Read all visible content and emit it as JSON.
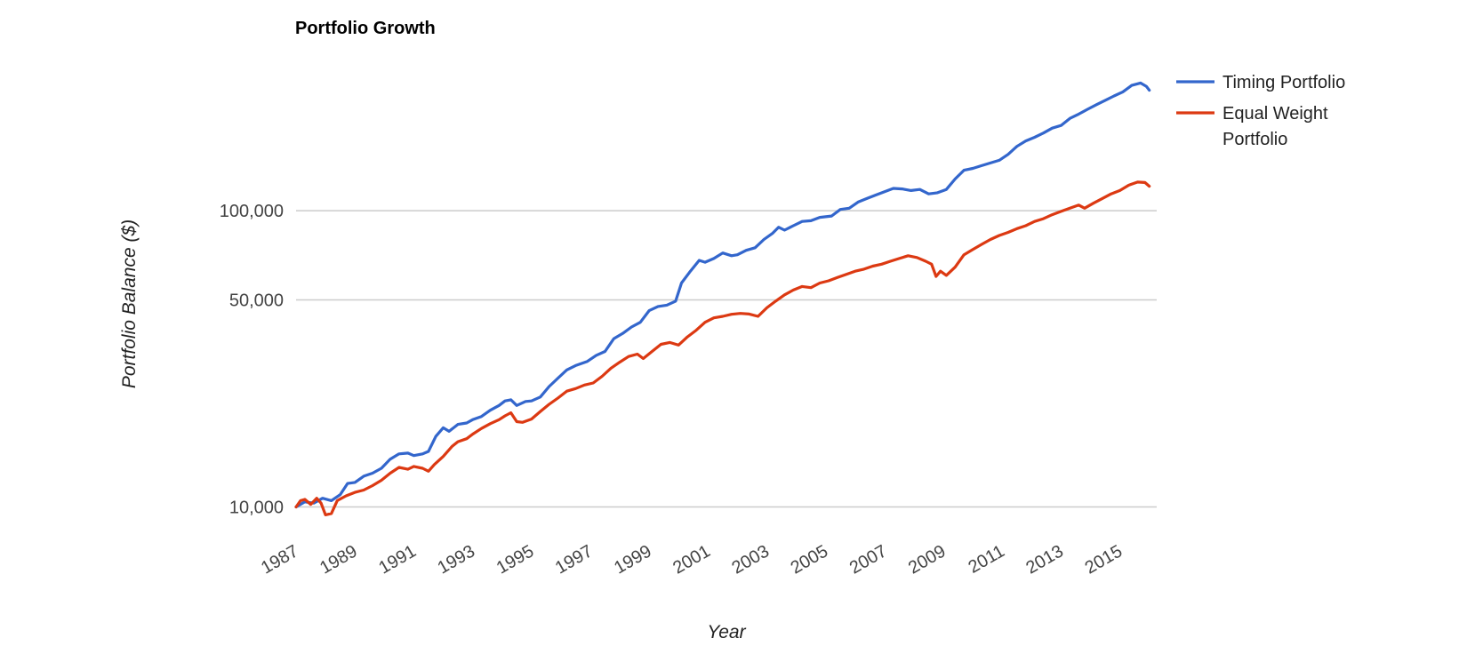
{
  "chart_data": {
    "type": "line",
    "title": "Portfolio Growth",
    "xlabel": "Year",
    "ylabel": "Portfolio Balance ($)",
    "y_scale": "log",
    "ylim": [
      8500,
      340000
    ],
    "xlim": [
      1987.0,
      2016.25
    ],
    "y_ticks": [
      {
        "value": 10000,
        "label": "10,000"
      },
      {
        "value": 50000,
        "label": "50,000"
      },
      {
        "value": 100000,
        "label": "100,000"
      }
    ],
    "x_ticks": [
      "1987",
      "1989",
      "1991",
      "1993",
      "1995",
      "1997",
      "1999",
      "2001",
      "2003",
      "2005",
      "2007",
      "2009",
      "2011",
      "2013",
      "2015"
    ],
    "grid": true,
    "legend_position": "right",
    "series": [
      {
        "name": "Timing Portfolio",
        "color": "#3366cc",
        "points": [
          [
            1987.0,
            10000
          ],
          [
            1987.3,
            10400
          ],
          [
            1987.6,
            10300
          ],
          [
            1987.9,
            10700
          ],
          [
            1988.2,
            10500
          ],
          [
            1988.5,
            11000
          ],
          [
            1988.75,
            12000
          ],
          [
            1989.0,
            12100
          ],
          [
            1989.3,
            12700
          ],
          [
            1989.6,
            13000
          ],
          [
            1989.9,
            13500
          ],
          [
            1990.2,
            14500
          ],
          [
            1990.5,
            15100
          ],
          [
            1990.8,
            15200
          ],
          [
            1991.0,
            14900
          ],
          [
            1991.3,
            15100
          ],
          [
            1991.5,
            15400
          ],
          [
            1991.75,
            17300
          ],
          [
            1992.0,
            18500
          ],
          [
            1992.2,
            18000
          ],
          [
            1992.5,
            19000
          ],
          [
            1992.8,
            19200
          ],
          [
            1993.0,
            19700
          ],
          [
            1993.3,
            20200
          ],
          [
            1993.6,
            21200
          ],
          [
            1993.9,
            22000
          ],
          [
            1994.1,
            22800
          ],
          [
            1994.3,
            23000
          ],
          [
            1994.5,
            22000
          ],
          [
            1994.8,
            22700
          ],
          [
            1995.0,
            22800
          ],
          [
            1995.3,
            23500
          ],
          [
            1995.6,
            25500
          ],
          [
            1995.9,
            27200
          ],
          [
            1996.2,
            29000
          ],
          [
            1996.5,
            30000
          ],
          [
            1996.9,
            31000
          ],
          [
            1997.2,
            32500
          ],
          [
            1997.5,
            33500
          ],
          [
            1997.8,
            37000
          ],
          [
            1998.1,
            38500
          ],
          [
            1998.4,
            40500
          ],
          [
            1998.7,
            42000
          ],
          [
            1999.0,
            46000
          ],
          [
            1999.3,
            47500
          ],
          [
            1999.6,
            48000
          ],
          [
            1999.9,
            49500
          ],
          [
            2000.1,
            57000
          ],
          [
            2000.4,
            62500
          ],
          [
            2000.7,
            68000
          ],
          [
            2000.9,
            67000
          ],
          [
            2001.2,
            69000
          ],
          [
            2001.5,
            72000
          ],
          [
            2001.8,
            70500
          ],
          [
            2002.0,
            71000
          ],
          [
            2002.3,
            73500
          ],
          [
            2002.6,
            75000
          ],
          [
            2002.9,
            80000
          ],
          [
            2003.2,
            84000
          ],
          [
            2003.4,
            88000
          ],
          [
            2003.6,
            86000
          ],
          [
            2003.9,
            89000
          ],
          [
            2004.2,
            92000
          ],
          [
            2004.5,
            92500
          ],
          [
            2004.8,
            95000
          ],
          [
            2005.2,
            96000
          ],
          [
            2005.5,
            101000
          ],
          [
            2005.8,
            102000
          ],
          [
            2006.1,
            107000
          ],
          [
            2006.4,
            110000
          ],
          [
            2006.7,
            113000
          ],
          [
            2007.0,
            116000
          ],
          [
            2007.3,
            119000
          ],
          [
            2007.6,
            118500
          ],
          [
            2007.9,
            117000
          ],
          [
            2008.2,
            118000
          ],
          [
            2008.5,
            114000
          ],
          [
            2008.8,
            115000
          ],
          [
            2009.1,
            118000
          ],
          [
            2009.4,
            128000
          ],
          [
            2009.7,
            137000
          ],
          [
            2010.0,
            139000
          ],
          [
            2010.3,
            142000
          ],
          [
            2010.6,
            145000
          ],
          [
            2010.9,
            148000
          ],
          [
            2011.2,
            155000
          ],
          [
            2011.5,
            165000
          ],
          [
            2011.8,
            172000
          ],
          [
            2012.1,
            177000
          ],
          [
            2012.4,
            183000
          ],
          [
            2012.7,
            190000
          ],
          [
            2013.0,
            194000
          ],
          [
            2013.3,
            205000
          ],
          [
            2013.6,
            212000
          ],
          [
            2013.9,
            220000
          ],
          [
            2014.2,
            228000
          ],
          [
            2014.5,
            236000
          ],
          [
            2014.8,
            244000
          ],
          [
            2015.1,
            252000
          ],
          [
            2015.4,
            265000
          ],
          [
            2015.7,
            270000
          ],
          [
            2015.9,
            263000
          ],
          [
            2016.0,
            255000
          ]
        ]
      },
      {
        "name": "Equal Weight Portfolio",
        "color": "#dc3912",
        "points": [
          [
            1987.0,
            10000
          ],
          [
            1987.15,
            10500
          ],
          [
            1987.3,
            10600
          ],
          [
            1987.5,
            10200
          ],
          [
            1987.7,
            10700
          ],
          [
            1987.85,
            10300
          ],
          [
            1988.0,
            9400
          ],
          [
            1988.2,
            9500
          ],
          [
            1988.4,
            10500
          ],
          [
            1988.7,
            10900
          ],
          [
            1989.0,
            11200
          ],
          [
            1989.3,
            11400
          ],
          [
            1989.6,
            11800
          ],
          [
            1989.9,
            12300
          ],
          [
            1990.2,
            13000
          ],
          [
            1990.5,
            13600
          ],
          [
            1990.8,
            13400
          ],
          [
            1991.0,
            13700
          ],
          [
            1991.3,
            13500
          ],
          [
            1991.5,
            13200
          ],
          [
            1991.7,
            13900
          ],
          [
            1992.0,
            14800
          ],
          [
            1992.3,
            16000
          ],
          [
            1992.5,
            16600
          ],
          [
            1992.8,
            17000
          ],
          [
            1993.0,
            17600
          ],
          [
            1993.3,
            18400
          ],
          [
            1993.6,
            19100
          ],
          [
            1993.9,
            19700
          ],
          [
            1994.1,
            20300
          ],
          [
            1994.3,
            20800
          ],
          [
            1994.5,
            19400
          ],
          [
            1994.7,
            19300
          ],
          [
            1995.0,
            19800
          ],
          [
            1995.3,
            21000
          ],
          [
            1995.6,
            22200
          ],
          [
            1995.9,
            23300
          ],
          [
            1996.2,
            24600
          ],
          [
            1996.5,
            25100
          ],
          [
            1996.8,
            25800
          ],
          [
            1997.1,
            26200
          ],
          [
            1997.4,
            27600
          ],
          [
            1997.7,
            29400
          ],
          [
            1998.0,
            30800
          ],
          [
            1998.3,
            32200
          ],
          [
            1998.6,
            32800
          ],
          [
            1998.8,
            31700
          ],
          [
            1999.1,
            33500
          ],
          [
            1999.4,
            35400
          ],
          [
            1999.7,
            35900
          ],
          [
            2000.0,
            35200
          ],
          [
            2000.3,
            37500
          ],
          [
            2000.6,
            39500
          ],
          [
            2000.9,
            42000
          ],
          [
            2001.2,
            43500
          ],
          [
            2001.5,
            44000
          ],
          [
            2001.8,
            44700
          ],
          [
            2002.1,
            45000
          ],
          [
            2002.4,
            44800
          ],
          [
            2002.7,
            44000
          ],
          [
            2003.0,
            47000
          ],
          [
            2003.3,
            49500
          ],
          [
            2003.6,
            52000
          ],
          [
            2003.9,
            54000
          ],
          [
            2004.2,
            55500
          ],
          [
            2004.5,
            55000
          ],
          [
            2004.8,
            57000
          ],
          [
            2005.1,
            58000
          ],
          [
            2005.4,
            59500
          ],
          [
            2005.7,
            61000
          ],
          [
            2006.0,
            62500
          ],
          [
            2006.3,
            63500
          ],
          [
            2006.6,
            65000
          ],
          [
            2006.9,
            66000
          ],
          [
            2007.2,
            67500
          ],
          [
            2007.5,
            69000
          ],
          [
            2007.8,
            70500
          ],
          [
            2008.1,
            69500
          ],
          [
            2008.4,
            67500
          ],
          [
            2008.6,
            66000
          ],
          [
            2008.75,
            60000
          ],
          [
            2008.9,
            62500
          ],
          [
            2009.1,
            60500
          ],
          [
            2009.4,
            64500
          ],
          [
            2009.7,
            71000
          ],
          [
            2010.0,
            74000
          ],
          [
            2010.3,
            77000
          ],
          [
            2010.6,
            80000
          ],
          [
            2010.9,
            82500
          ],
          [
            2011.2,
            84500
          ],
          [
            2011.5,
            87000
          ],
          [
            2011.8,
            89000
          ],
          [
            2012.1,
            92000
          ],
          [
            2012.4,
            94000
          ],
          [
            2012.7,
            97000
          ],
          [
            2013.0,
            99500
          ],
          [
            2013.3,
            102000
          ],
          [
            2013.6,
            104500
          ],
          [
            2013.8,
            102000
          ],
          [
            2014.1,
            106000
          ],
          [
            2014.4,
            110000
          ],
          [
            2014.7,
            114000
          ],
          [
            2015.0,
            117000
          ],
          [
            2015.3,
            122000
          ],
          [
            2015.6,
            125000
          ],
          [
            2015.85,
            124500
          ],
          [
            2016.0,
            121000
          ]
        ]
      }
    ]
  }
}
